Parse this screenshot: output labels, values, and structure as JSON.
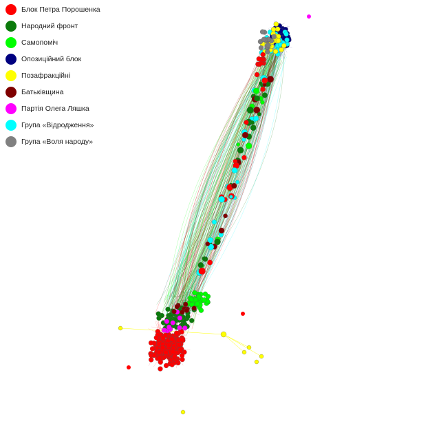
{
  "legend": [
    {
      "label": "Блок Петра Порошенка",
      "color": "#ff0000"
    },
    {
      "label": "Народний фронт",
      "color": "#0b7a0b"
    },
    {
      "label": "Самопоміч",
      "color": "#00ff00"
    },
    {
      "label": "Опозиційний блок",
      "color": "#000080"
    },
    {
      "label": "Позафракційні",
      "color": "#ffff00"
    },
    {
      "label": "Батьківщина",
      "color": "#7f0000"
    },
    {
      "label": "Партія Олега Ляшка",
      "color": "#ff00ff"
    },
    {
      "label": "Група «Відродження»",
      "color": "#00ffff"
    },
    {
      "label": "Група «Воля народу»",
      "color": "#808080"
    }
  ]
}
